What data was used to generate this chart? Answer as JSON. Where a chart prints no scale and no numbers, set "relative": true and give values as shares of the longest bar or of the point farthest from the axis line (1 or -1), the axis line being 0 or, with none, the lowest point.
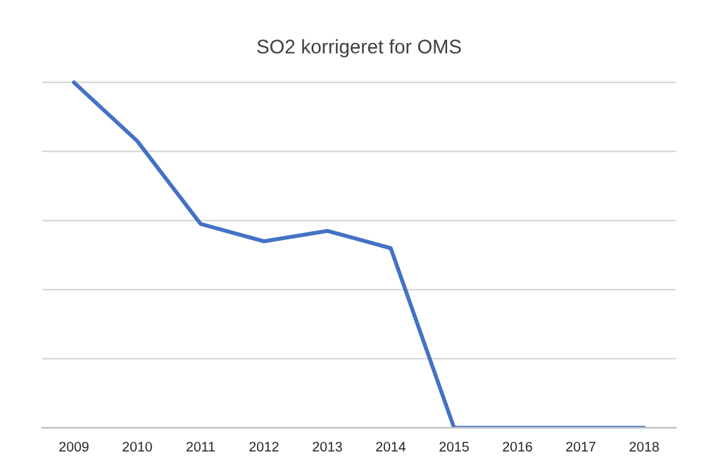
{
  "chart_data": {
    "type": "line",
    "title": "SO2 korrigeret for OMS",
    "categories": [
      "2009",
      "2010",
      "2011",
      "2012",
      "2013",
      "2014",
      "2015",
      "2016",
      "2017",
      "2018"
    ],
    "series": [
      {
        "color": "#4472c4",
        "values": [
          1,
          0.83,
          0.59,
          0.54,
          0.57,
          0.52,
          0,
          0,
          0,
          0
        ]
      }
    ],
    "relative": true,
    "grid": "y",
    "legend": false,
    "marker": "none",
    "line_style": "solid"
  }
}
